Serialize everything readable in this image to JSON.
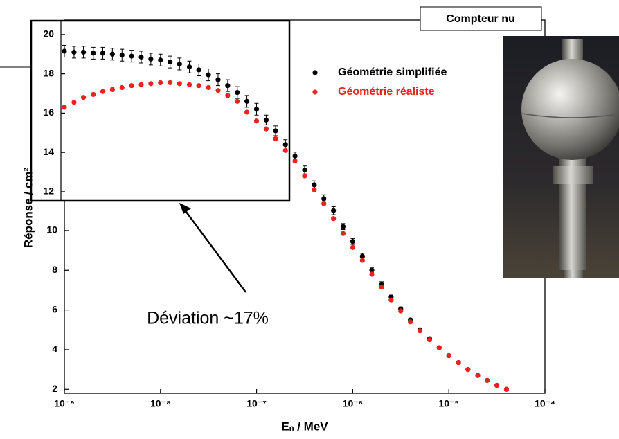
{
  "chart_data": {
    "type": "scatter",
    "ylabel": "Réponse / cm²",
    "xlabel": "Eₙ / MeV",
    "log_x": true,
    "xlim": [
      1e-09,
      0.0001
    ],
    "ylim": [
      1.8,
      20.6
    ],
    "xticks": [
      {
        "value": 1e-09,
        "label": "10⁻⁹"
      },
      {
        "value": 1e-08,
        "label": "10⁻⁸"
      },
      {
        "value": 1e-07,
        "label": "10⁻⁷"
      },
      {
        "value": 1e-06,
        "label": "10⁻⁶"
      },
      {
        "value": 1e-05,
        "label": "10⁻⁵"
      },
      {
        "value": 0.0001,
        "label": "10⁻⁴"
      }
    ],
    "yticks": [
      2,
      4,
      6,
      8,
      10,
      12
    ],
    "x": [
      1e-09,
      1.26e-09,
      1.58e-09,
      2e-09,
      2.51e-09,
      3.16e-09,
      3.98e-09,
      5.01e-09,
      6.31e-09,
      7.94e-09,
      1e-08,
      1.26e-08,
      1.58e-08,
      2e-08,
      2.51e-08,
      3.16e-08,
      3.98e-08,
      5.01e-08,
      6.31e-08,
      7.94e-08,
      1e-07,
      1.26e-07,
      1.58e-07,
      2e-07,
      2.51e-07,
      3.16e-07,
      3.98e-07,
      5.01e-07,
      6.31e-07,
      7.94e-07,
      1e-06,
      1.26e-06,
      1.58e-06,
      2e-06,
      2.51e-06,
      3.16e-06,
      3.98e-06,
      5.01e-06,
      6.31e-06,
      7.94e-06,
      1e-05,
      1.26e-05,
      1.58e-05,
      2e-05,
      2.51e-05,
      3.16e-05,
      3.98e-05
    ],
    "series": [
      {
        "name": "Géométrie simplifiée",
        "color": "#000000",
        "values": [
          19.15,
          19.1,
          19.1,
          19.05,
          19.05,
          19.0,
          18.95,
          18.9,
          18.85,
          18.75,
          18.7,
          18.6,
          18.5,
          18.35,
          18.2,
          17.95,
          17.7,
          17.4,
          17.05,
          16.6,
          16.2,
          15.65,
          15.1,
          14.4,
          13.75,
          13.05,
          12.3,
          11.6,
          11.0,
          10.2,
          9.45,
          8.7,
          8.0,
          7.3,
          6.65,
          6.05,
          5.5,
          5.0,
          4.55,
          4.1,
          3.7,
          3.35,
          3.0,
          2.7,
          2.45,
          2.2,
          2.0
        ],
        "errors": [
          0.3,
          0.3,
          0.3,
          0.3,
          0.3,
          0.3,
          0.3,
          0.3,
          0.3,
          0.3,
          0.3,
          0.3,
          0.3,
          0.3,
          0.3,
          0.3,
          0.3,
          0.3,
          0.3,
          0.3,
          0.3,
          0.25,
          0.25,
          0.25,
          0.2,
          0.2,
          0.2,
          0.2,
          0.2,
          0.15,
          0.15,
          0.15,
          0.12,
          0.12,
          0.1,
          0.1,
          0.08,
          0.08,
          0.06,
          0.06,
          0.05,
          0.05,
          0.04,
          0.04,
          0.03,
          0.03,
          0.03
        ]
      },
      {
        "name": "Géométrie réaliste",
        "color": "#e8231e",
        "values": [
          16.3,
          16.55,
          16.8,
          16.95,
          17.1,
          17.2,
          17.3,
          17.4,
          17.45,
          17.5,
          17.55,
          17.55,
          17.5,
          17.45,
          17.4,
          17.3,
          17.15,
          16.9,
          16.6,
          16.05,
          15.6,
          15.2,
          14.7,
          14.1,
          13.5,
          12.75,
          12.05,
          11.35,
          10.6,
          9.85,
          9.15,
          8.5,
          7.8,
          7.15,
          6.5,
          5.95,
          5.4,
          4.95,
          4.5,
          4.1,
          3.7,
          3.35,
          3.0,
          2.7,
          2.45,
          2.2,
          2.0
        ]
      }
    ],
    "inset": {
      "xlim": [
        9.2e-10,
        2.2e-07
      ],
      "ylim": [
        11.54,
        20.7
      ],
      "yticks": [
        12,
        14,
        16,
        18,
        20
      ]
    },
    "photo_label": "Compteur nu",
    "annotation": "Déviation ~17%"
  }
}
